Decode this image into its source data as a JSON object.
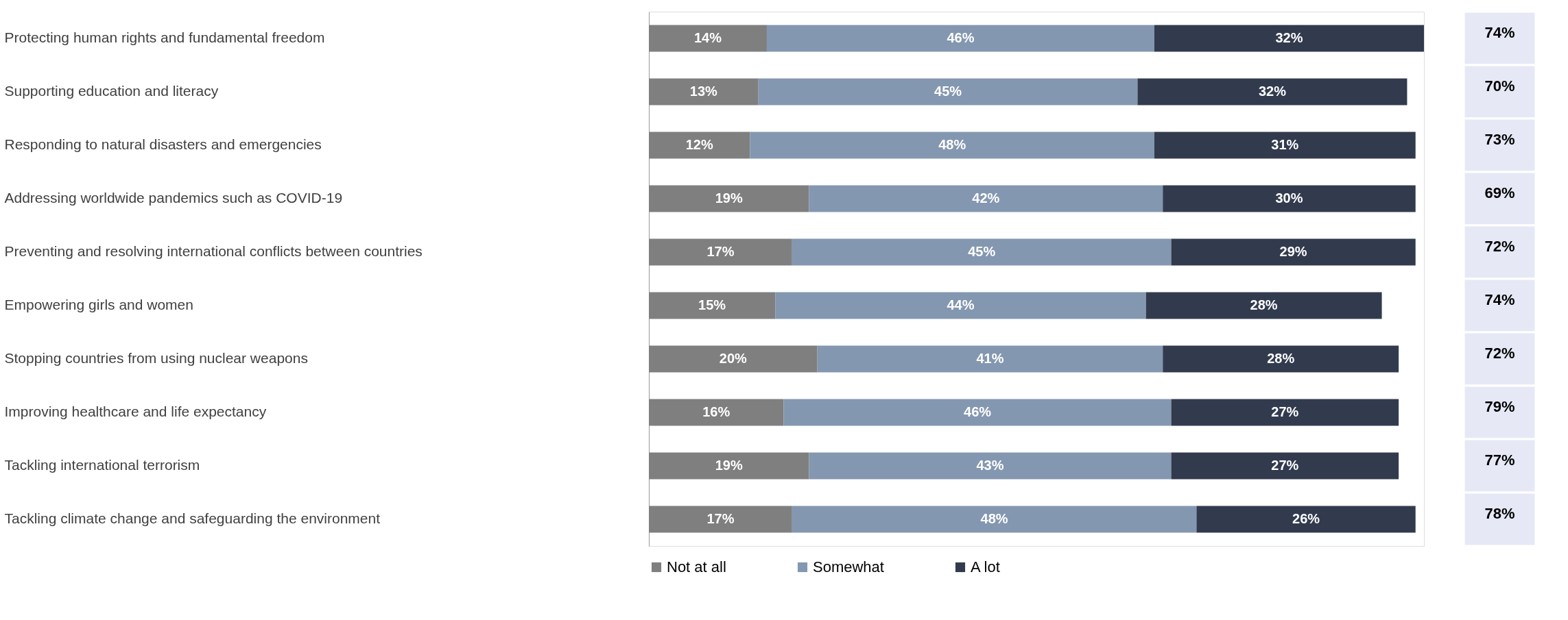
{
  "chart_data": [
    {
      "type": "bar",
      "orientation": "horizontal",
      "stacked": true,
      "legend": "bottom",
      "grid": false,
      "tick_labels": "y",
      "categories": [
        "Protecting human rights and fundamental freedom",
        "Supporting education and literacy",
        "Responding to natural disasters and emergencies",
        "Addressing worldwide pandemics such as COVID-19",
        "Preventing and resolving international conflicts between countries",
        "Empowering girls and women",
        "Stopping countries from using nuclear weapons",
        "Improving healthcare and life expectancy",
        "Tackling international terrorism",
        "Tackling climate change and safeguarding the environment"
      ],
      "series": [
        {
          "name": "Not at all",
          "color": "#7f7f7f",
          "values": [
            14,
            13,
            12,
            19,
            17,
            15,
            20,
            16,
            19,
            17
          ],
          "value_labels": [
            "14%",
            "13%",
            "12%",
            "19%",
            "17%",
            "15%",
            "20%",
            "16%",
            "19%",
            "17%"
          ]
        },
        {
          "name": "Somewhat",
          "color": "#8497b0",
          "values": [
            46,
            45,
            48,
            42,
            45,
            44,
            41,
            46,
            43,
            48
          ],
          "value_labels": [
            "46%",
            "45%",
            "48%",
            "42%",
            "45%",
            "44%",
            "41%",
            "46%",
            "43%",
            "48%"
          ]
        },
        {
          "name": "A lot",
          "color": "#323b4e",
          "values": [
            32,
            32,
            31,
            30,
            29,
            28,
            28,
            27,
            27,
            26
          ],
          "value_labels": [
            "32%",
            "32%",
            "31%",
            "30%",
            "29%",
            "28%",
            "28%",
            "27%",
            "27%",
            "26%"
          ]
        }
      ]
    },
    {
      "type": "other",
      "color": "#e6e9f5",
      "annotations": [
        "74%",
        "70%",
        "73%",
        "69%",
        "72%",
        "74%",
        "72%",
        "79%",
        "77%",
        "78%"
      ]
    }
  ]
}
